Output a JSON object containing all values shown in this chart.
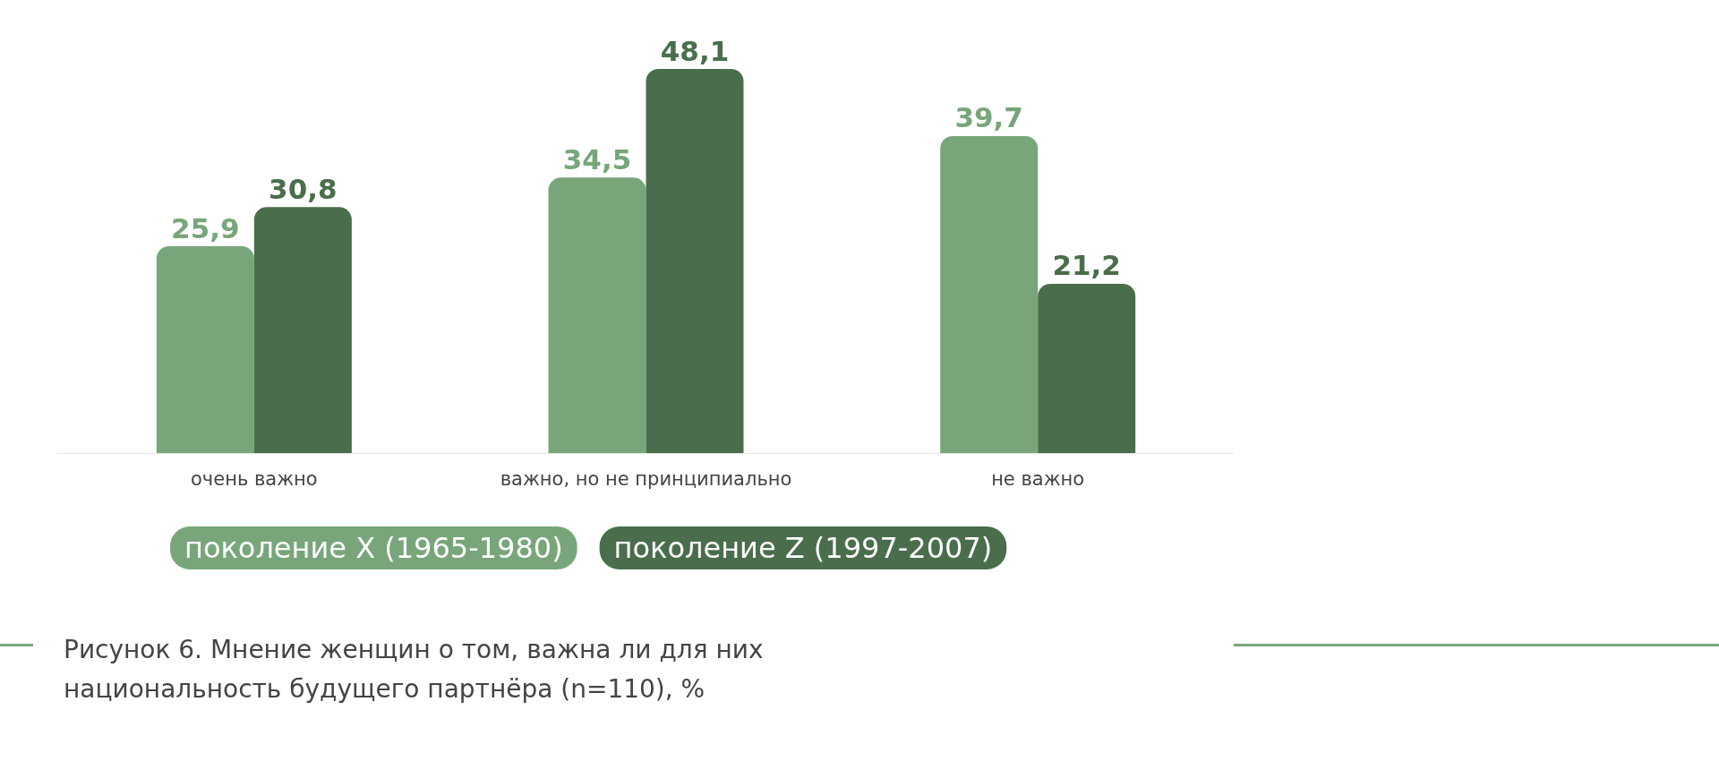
{
  "chart_data": {
    "type": "bar",
    "title": "Рисунок 6. Мнение женщин о том, важна ли для них национальность будущего партнёра (n=110), %",
    "categories": [
      "очень важно",
      "важно, но не принципиально",
      "не важно"
    ],
    "series": [
      {
        "name": "поколение X (1965-1980)",
        "color": "#78a67a",
        "values": [
          25.9,
          34.5,
          39.7
        ],
        "value_labels": [
          "25,9",
          "34,5",
          "39,7"
        ]
      },
      {
        "name": "поколение Z (1997-2007)",
        "color": "#4a6e4b",
        "values": [
          30.8,
          48.1,
          21.2
        ],
        "value_labels": [
          "30,8",
          "48,1",
          "21,2"
        ]
      }
    ],
    "legend": "bottom left"
  }
}
